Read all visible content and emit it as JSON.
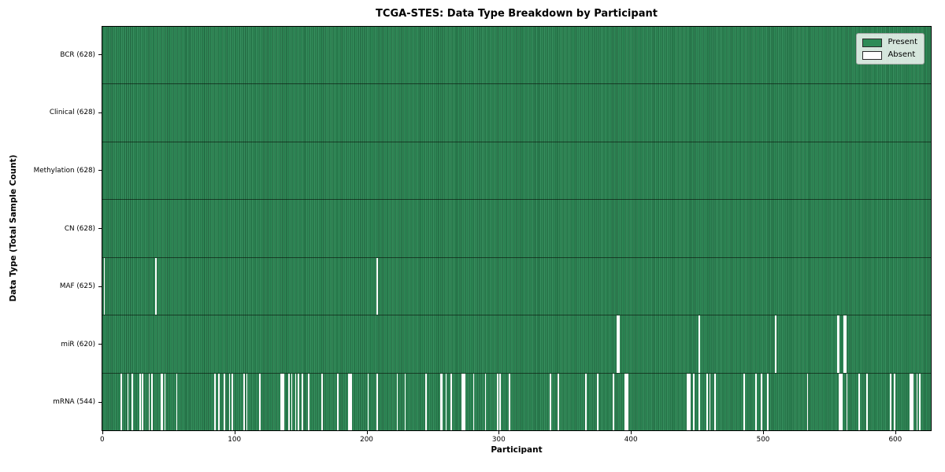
{
  "figure": {
    "title": "TCGA-STES: Data Type Breakdown by Participant",
    "xlabel": "Participant",
    "ylabel": "Data Type (Total Sample Count)"
  },
  "legend": {
    "items": [
      {
        "label": "Present",
        "color": "#2E8B57"
      },
      {
        "label": "Absent",
        "color": "#FEFEFE"
      }
    ]
  },
  "chart_data": {
    "type": "heatmap",
    "title": "TCGA-STES: Data Type Breakdown by Participant",
    "xlabel": "Participant",
    "ylabel": "Data Type (Total Sample Count)",
    "legend_entries": [
      "Present",
      "Absent"
    ],
    "legend_position": "upper right",
    "grid": false,
    "n_participants": 628,
    "xlim": [
      -0.5,
      627.5
    ],
    "x_ticks": [
      0,
      100,
      200,
      300,
      400,
      500,
      600
    ],
    "colors": {
      "present": "#2E8B57",
      "absent": "#FEFEFE"
    },
    "rows": [
      {
        "label": "BCR (628)",
        "data_type": "BCR",
        "present_count": 628,
        "absent_count": 0,
        "absent_indices": []
      },
      {
        "label": "Clinical (628)",
        "data_type": "Clinical",
        "present_count": 628,
        "absent_count": 0,
        "absent_indices": []
      },
      {
        "label": "Methylation (628)",
        "data_type": "Methylation",
        "present_count": 628,
        "absent_count": 0,
        "absent_indices": []
      },
      {
        "label": "CN (628)",
        "data_type": "CN",
        "present_count": 628,
        "absent_count": 0,
        "absent_indices": []
      },
      {
        "label": "MAF (625)",
        "data_type": "MAF",
        "present_count": 625,
        "absent_count": 3,
        "absent_indices": [
          1,
          40,
          208
        ]
      },
      {
        "label": "miR (620)",
        "data_type": "miR",
        "present_count": 620,
        "absent_count": 8,
        "absent_indices": [
          390,
          391,
          452,
          510,
          557,
          558,
          562,
          563
        ]
      },
      {
        "label": "mRNA (544)",
        "data_type": "mRNA",
        "present_count": 544,
        "absent_count": 84,
        "absent_indices": [
          14,
          19,
          22,
          28,
          30,
          35,
          37,
          44,
          45,
          47,
          56,
          85,
          88,
          92,
          96,
          98,
          107,
          109,
          119,
          135,
          136,
          137,
          141,
          143,
          146,
          148,
          151,
          156,
          166,
          178,
          186,
          187,
          188,
          201,
          208,
          223,
          229,
          245,
          256,
          257,
          260,
          264,
          272,
          273,
          274,
          281,
          290,
          299,
          301,
          308,
          339,
          345,
          366,
          375,
          387,
          396,
          397,
          398,
          443,
          444,
          445,
          448,
          452,
          458,
          460,
          464,
          486,
          495,
          499,
          504,
          534,
          558,
          559,
          560,
          564,
          573,
          579,
          597,
          600,
          612,
          613,
          614,
          617,
          619
        ]
      }
    ]
  }
}
